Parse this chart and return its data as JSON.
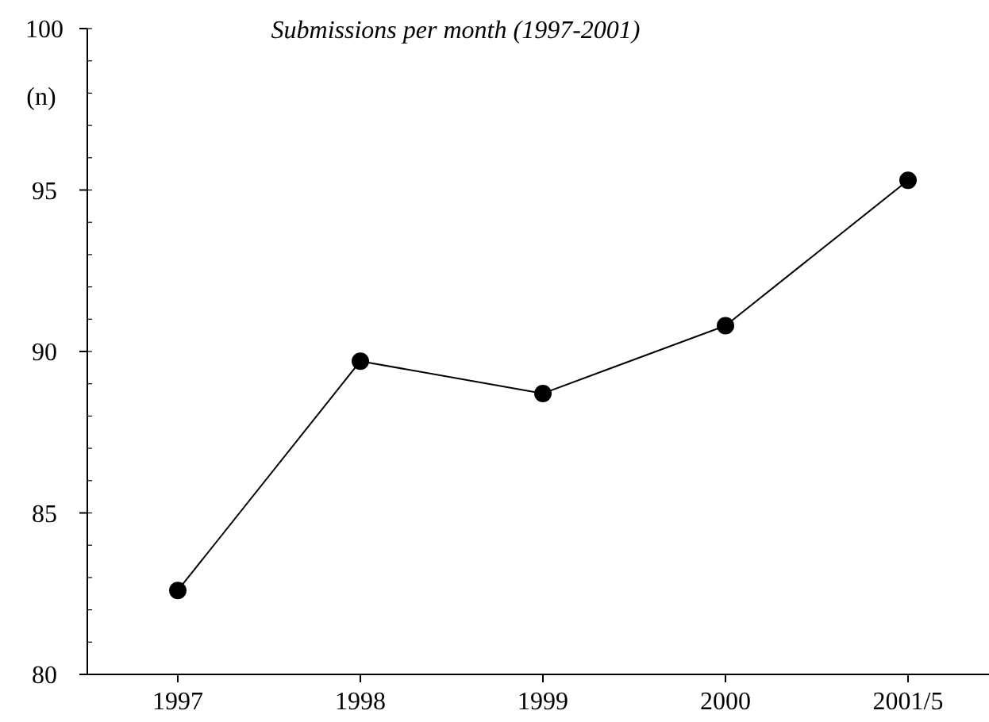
{
  "chart_data": {
    "type": "line",
    "title": "Submissions per month (1997-2001)",
    "ylabel": "(n)",
    "categories": [
      "1997",
      "1998",
      "1999",
      "2000",
      "2001/5"
    ],
    "series": [
      {
        "color": "#000000",
        "values": [
          82.6,
          89.7,
          88.7,
          90.8,
          95.3
        ]
      }
    ],
    "ylim": [
      80,
      100
    ],
    "yticks": [
      80,
      85,
      90,
      95,
      100
    ],
    "marker": "circle"
  }
}
